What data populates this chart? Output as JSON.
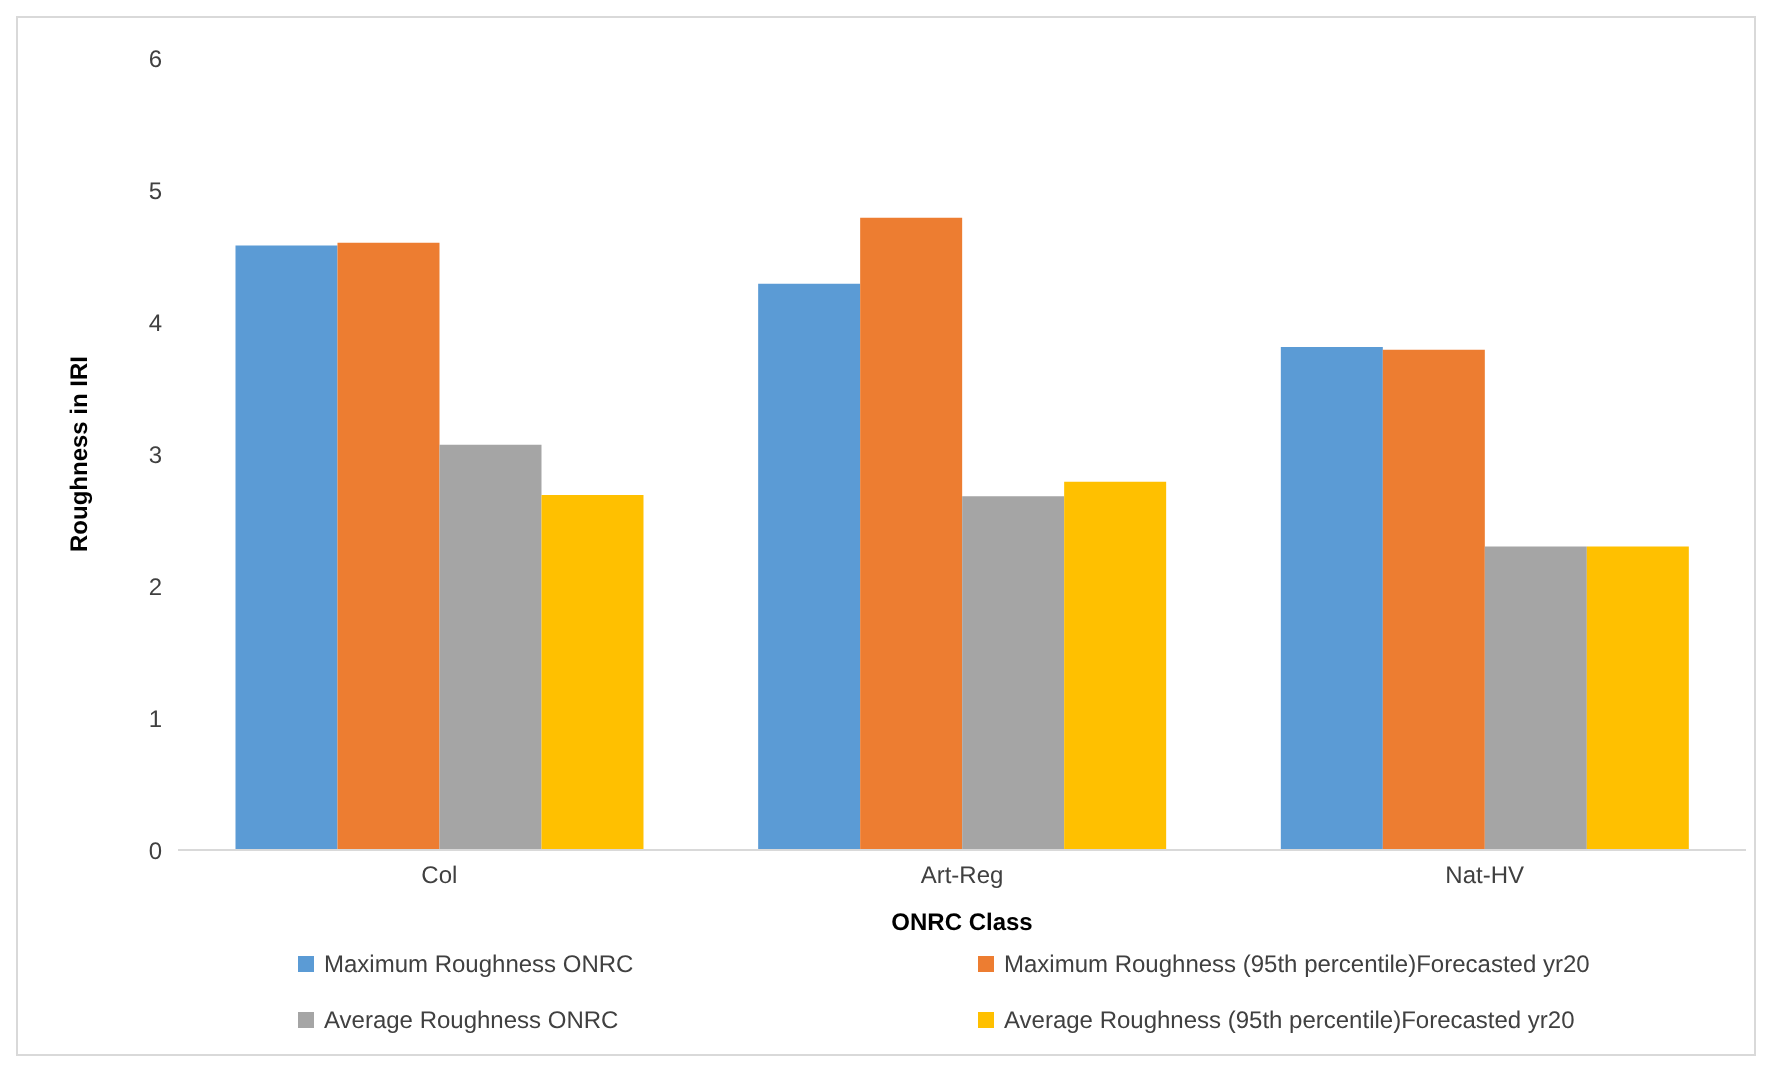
{
  "chart_data": {
    "type": "bar",
    "xlabel": "ONRC Class",
    "ylabel": "Roughness in IRI",
    "categories": [
      "Col",
      "Art-Reg",
      "Nat-HV"
    ],
    "series": [
      {
        "name": "Maximum Roughness ONRC",
        "color": "#5b9bd5",
        "values": [
          4.58,
          4.29,
          3.81
        ]
      },
      {
        "name": "Maximum Roughness (95th percentile)Forecasted yr20",
        "color": "#ed7d31",
        "values": [
          4.6,
          4.79,
          3.79
        ]
      },
      {
        "name": "Average Roughness ONRC",
        "color": "#a5a5a5",
        "values": [
          3.07,
          2.68,
          2.3
        ]
      },
      {
        "name": "Average Roughness (95th percentile)Forecasted yr20",
        "color": "#ffc000",
        "values": [
          2.69,
          2.79,
          2.3
        ]
      }
    ],
    "ylim": [
      0,
      6
    ],
    "yticks": [
      0,
      1,
      2,
      3,
      4,
      5,
      6
    ],
    "grid": false,
    "legend": "bottom"
  }
}
